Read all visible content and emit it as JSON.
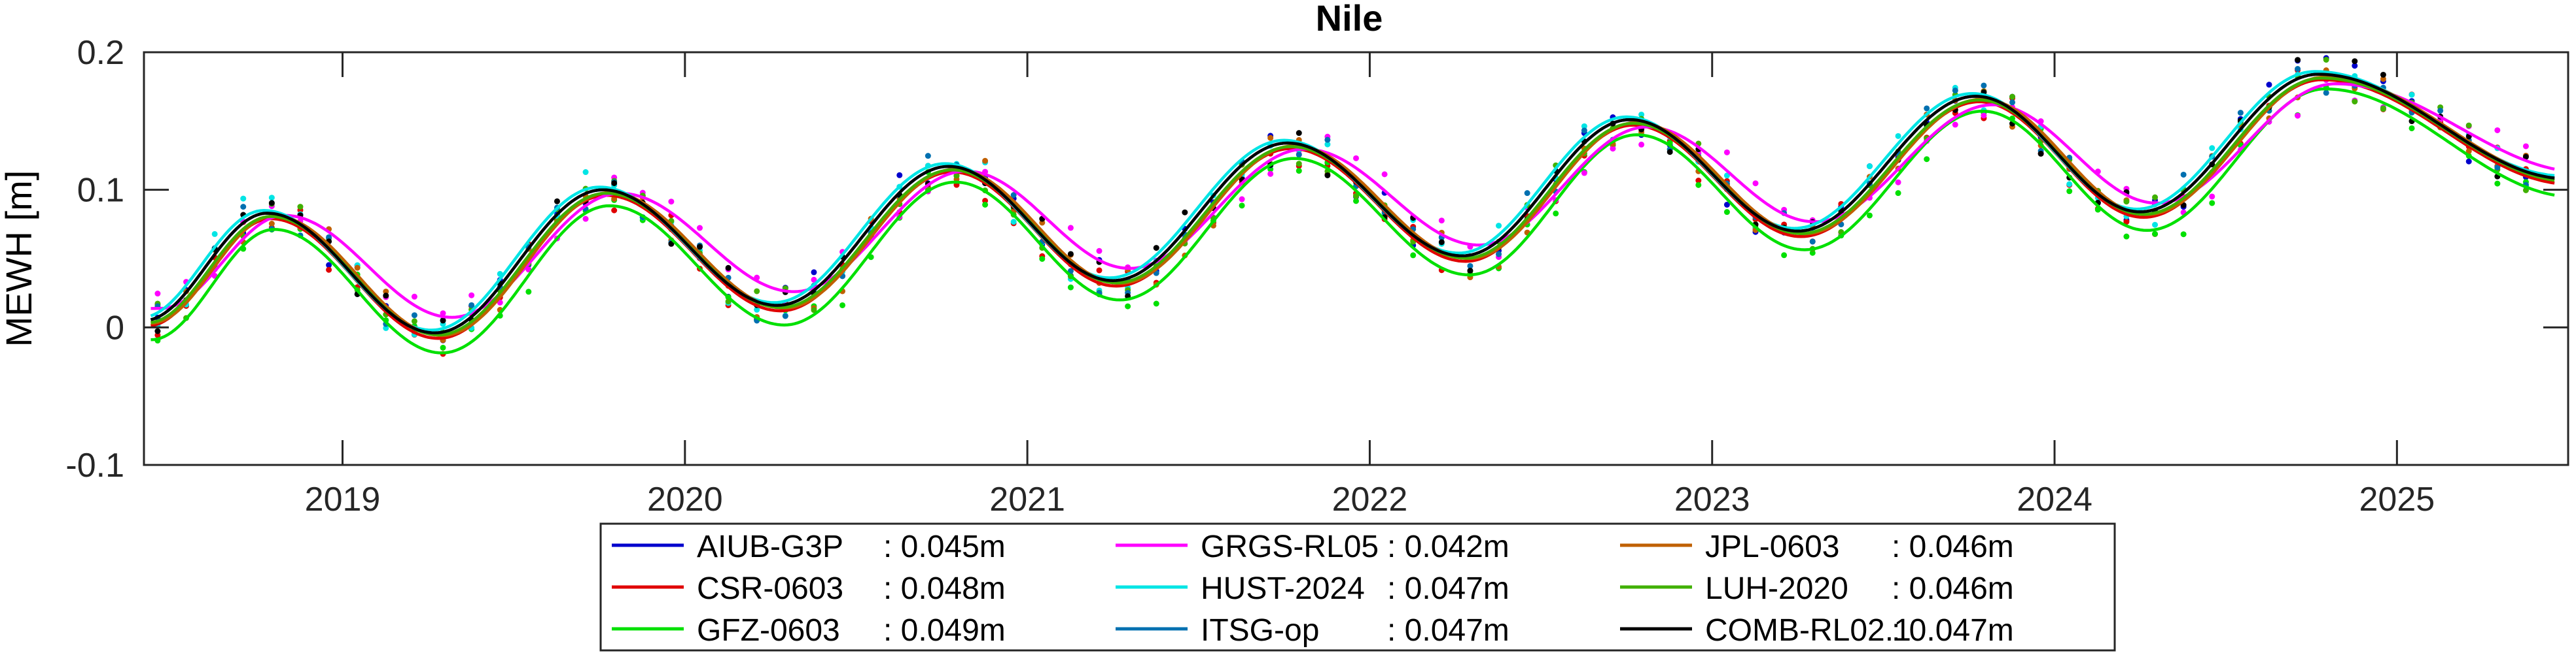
{
  "chart_data": {
    "type": "line",
    "title": "Nile",
    "xlabel": "",
    "ylabel": "MEWH [m]",
    "xlim": [
      2018.42,
      2025.5
    ],
    "ylim": [
      -0.1,
      0.2
    ],
    "x_ticks": [
      2019,
      2020,
      2021,
      2022,
      2023,
      2024,
      2025
    ],
    "x_tick_labels": [
      "2019",
      "2020",
      "2021",
      "2022",
      "2023",
      "2024",
      "2025"
    ],
    "y_ticks": [
      -0.1,
      0,
      0.1,
      0.2
    ],
    "y_tick_labels": [
      "-0.1",
      "0",
      "0.1",
      "0.2"
    ],
    "grid": false,
    "legend_position": "bottom-outside",
    "series": [
      {
        "name": "AIUB-G3P",
        "rms": ": 0.045m",
        "color": "#0000cc",
        "offset": 0.0,
        "amp_scale": 1.0,
        "phase": 0.0
      },
      {
        "name": "CSR-0603",
        "rms": ": 0.048m",
        "color": "#e00000",
        "offset": -0.004,
        "amp_scale": 1.0,
        "phase": 0.01
      },
      {
        "name": "GFZ-0603",
        "rms": ": 0.049m",
        "color": "#00e000",
        "offset": -0.013,
        "amp_scale": 1.03,
        "phase": 0.02
      },
      {
        "name": "GRGS-RL05",
        "rms": ": 0.042m",
        "color": "#ff00ff",
        "offset": 0.004,
        "amp_scale": 0.86,
        "phase": 0.05
      },
      {
        "name": "HUST-2024",
        "rms": ": 0.047m",
        "color": "#00e5e5",
        "offset": 0.002,
        "amp_scale": 1.0,
        "phase": -0.01
      },
      {
        "name": "ITSG-op",
        "rms": ": 0.047m",
        "color": "#0070b0",
        "offset": 0.0,
        "amp_scale": 1.0,
        "phase": 0.0
      },
      {
        "name": "JPL-0603",
        "rms": ": 0.046m",
        "color": "#c06000",
        "offset": -0.002,
        "amp_scale": 1.0,
        "phase": 0.02
      },
      {
        "name": "LUH-2020",
        "rms": ": 0.046m",
        "color": "#40b000",
        "offset": -0.002,
        "amp_scale": 0.99,
        "phase": 0.01
      },
      {
        "name": "COMB-RL02.1",
        "rms": ": 0.047m",
        "color": "#000000",
        "offset": 0.0,
        "amp_scale": 1.0,
        "phase": 0.0
      }
    ],
    "seasonal_curve": {
      "x": [
        2018.42,
        2018.78,
        2019.27,
        2019.76,
        2020.27,
        2020.77,
        2021.25,
        2021.76,
        2022.27,
        2022.76,
        2023.25,
        2023.77,
        2024.25,
        2024.77,
        2025.5
      ],
      "y": [
        0.005,
        0.083,
        -0.004,
        0.1,
        0.016,
        0.117,
        0.034,
        0.134,
        0.052,
        0.151,
        0.07,
        0.168,
        0.084,
        0.184,
        0.108
      ]
    }
  }
}
